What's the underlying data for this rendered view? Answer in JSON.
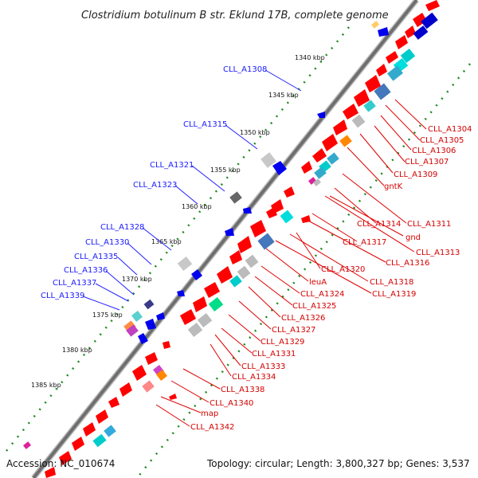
{
  "title": "Clostridium botulinum B str. Eklund 17B, complete genome",
  "footer": {
    "accession": "Accession: NC_010674",
    "summary": "Topology: circular; Length: 3,800,327 bp; Genes: 3,537"
  },
  "ticks": [
    "1340 kbp",
    "1345 kbp",
    "1350 kbp",
    "1355 kbp",
    "1360 kbp",
    "1365 kbp",
    "1370 kbp",
    "1375 kbp",
    "1380 kbp",
    "1385 kbp"
  ],
  "left_labels": [
    "CLL_A1308",
    "CLL_A1315",
    "CLL_A1321",
    "CLL_A1323",
    "CLL_A1328",
    "CLL_A1330",
    "CLL_A1335",
    "CLL_A1336",
    "CLL_A1337",
    "CLL_A1339"
  ],
  "right_labels": [
    "CLL_A1304",
    "CLL_A1305",
    "CLL_A1306",
    "CLL_A1307",
    "CLL_A1309",
    "gntK",
    "CLL_A1311",
    "CLL_A1314",
    "gnd",
    "CLL_A1313",
    "CLL_A1317",
    "CLL_A1316",
    "CLL_A1320",
    "CLL_A1318",
    "leuA",
    "CLL_A1319",
    "CLL_A1324",
    "CLL_A1325",
    "CLL_A1326",
    "CLL_A1327",
    "CLL_A1329",
    "CLL_A1331",
    "CLL_A1333",
    "CLL_A1334",
    "CLL_A1338",
    "CLL_A1340",
    "map",
    "CLL_A1342"
  ],
  "colors": {
    "forward_gene": "#ff0000",
    "reverse_gene": "#0000ff",
    "backbone": "#777777",
    "tick_dots": "#1e8a1e",
    "label_left": "#1a1aff",
    "label_right": "#d40000"
  }
}
